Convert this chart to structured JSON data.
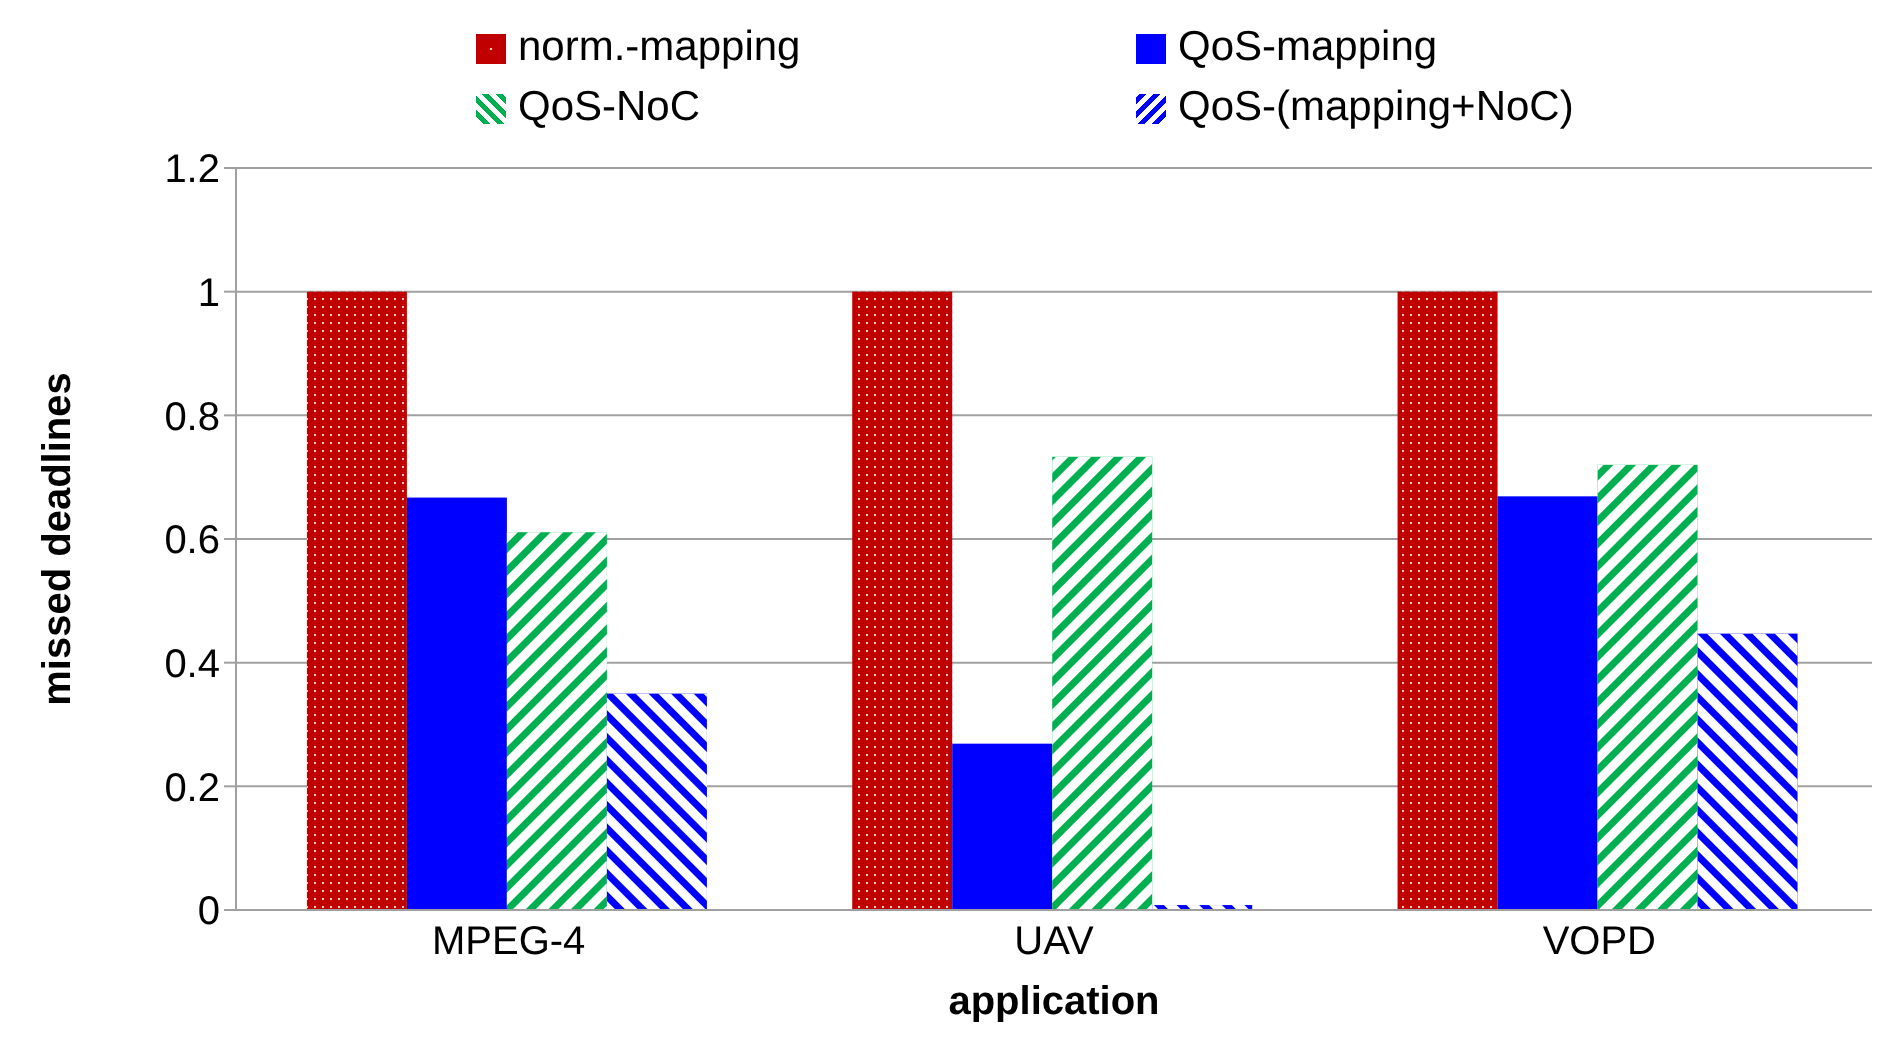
{
  "chart_data": {
    "type": "bar",
    "xlabel": "application",
    "ylabel": "missed deadlines",
    "categories": [
      "MPEG-4",
      "UAV",
      "VOPD"
    ],
    "series": [
      {
        "name": "norm.-mapping",
        "color": "#c00000",
        "values": [
          1,
          1,
          1
        ]
      },
      {
        "name": "QoS-mapping",
        "color": "#0000ff",
        "values": [
          0.667,
          0.269,
          0.669
        ]
      },
      {
        "name": "QoS-NoC",
        "color": "#00b050",
        "values": [
          0.611,
          0.733,
          0.72
        ]
      },
      {
        "name": "QoS-(mapping+NoC)",
        "color": "#0000ff",
        "values": [
          0.35,
          0.008,
          0.447
        ]
      }
    ],
    "ylim": [
      0,
      1.2
    ],
    "yticks": [
      0,
      0.2,
      0.4,
      0.6,
      0.8,
      1,
      1.2
    ],
    "grid": "y",
    "legend": "top"
  }
}
